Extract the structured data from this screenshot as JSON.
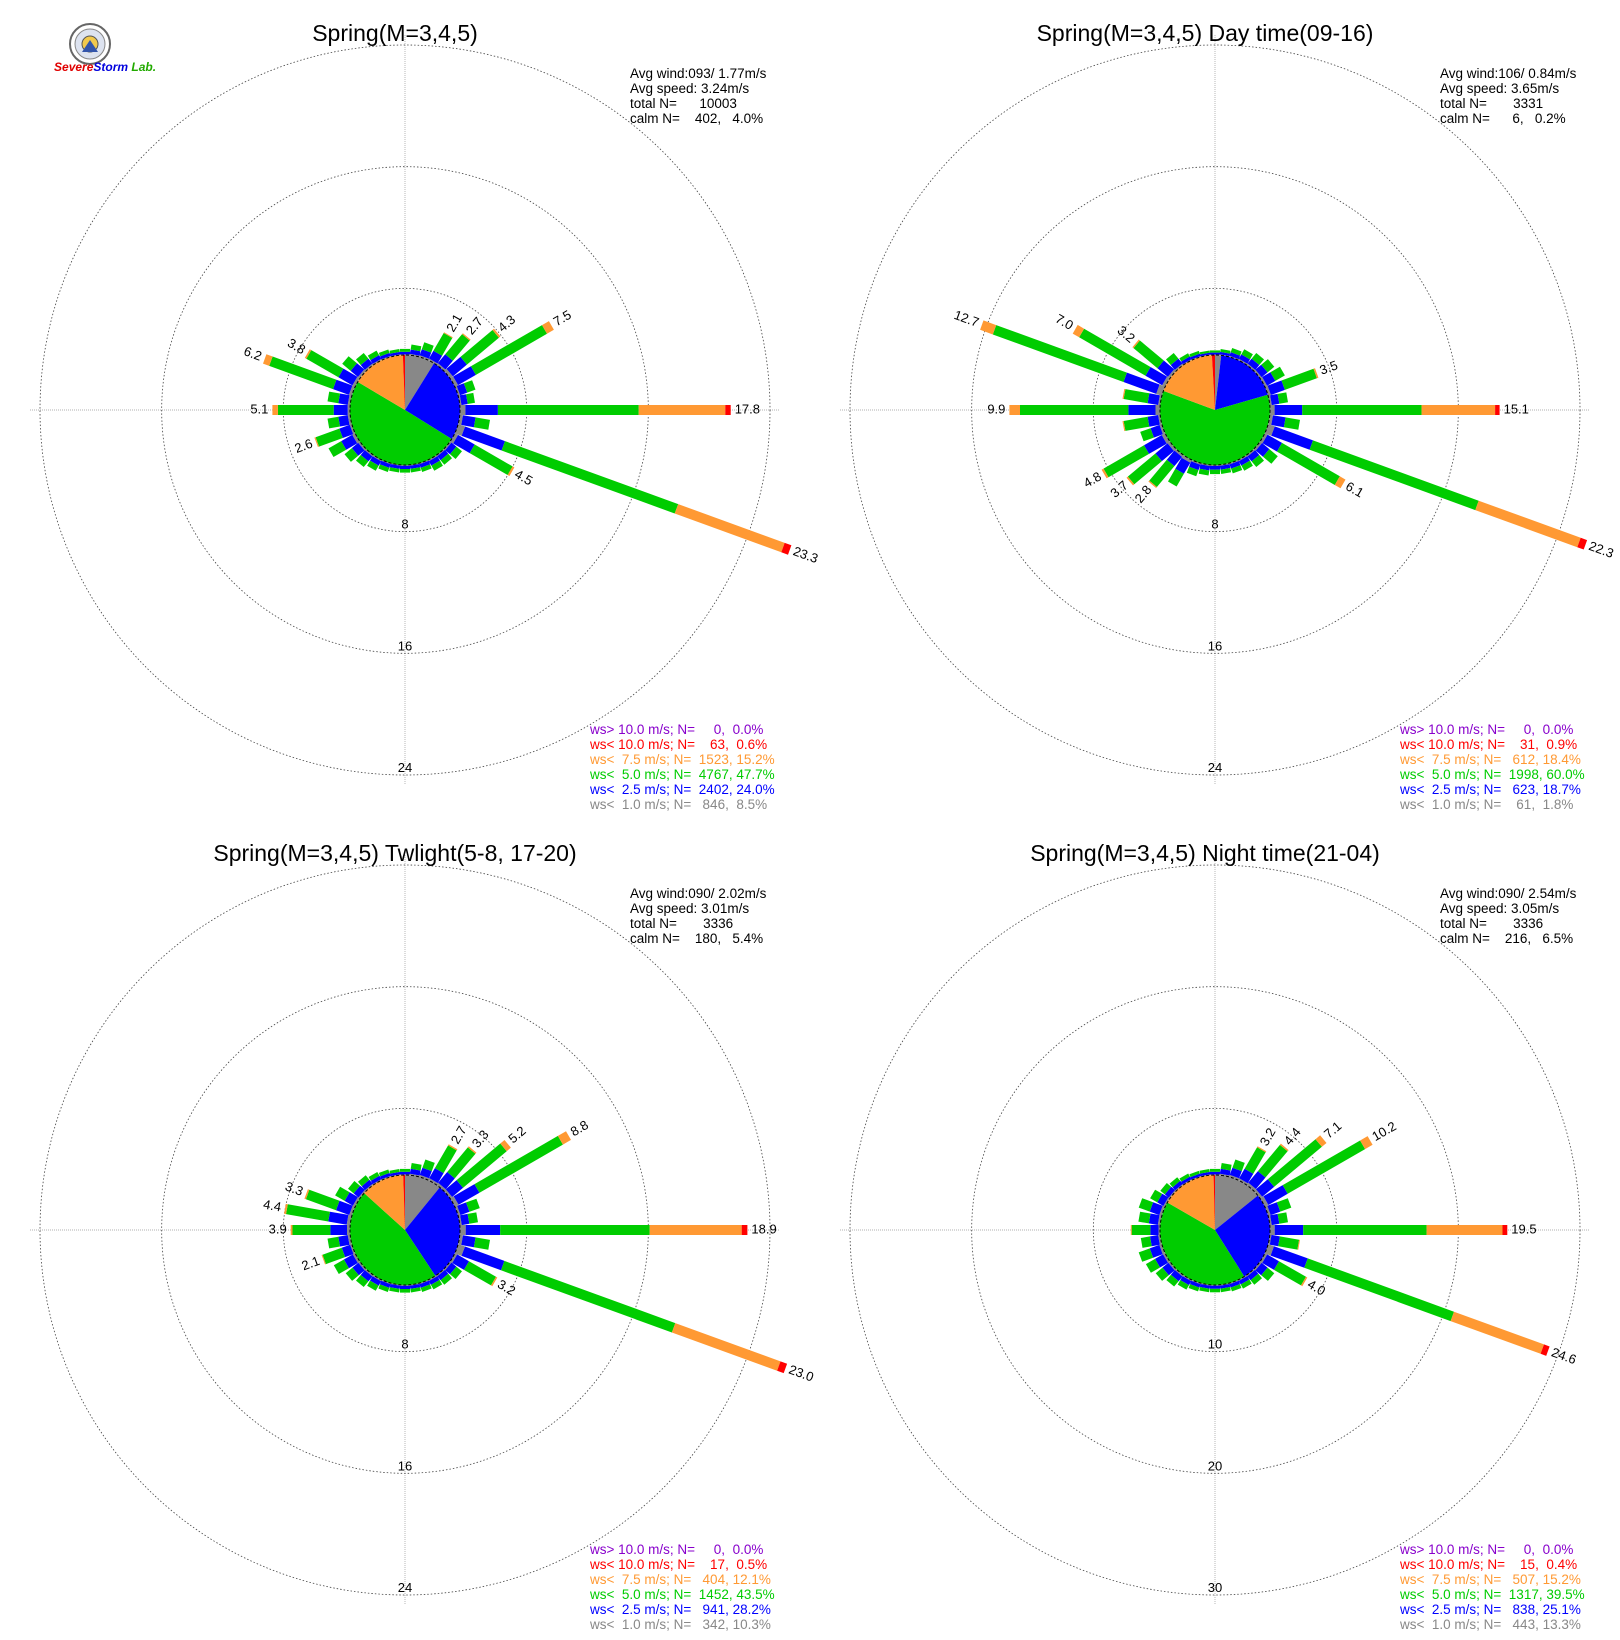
{
  "logo": {
    "name": "Severe Storm Lab.",
    "text_parts": [
      "S",
      "evere",
      "S",
      "torm",
      " Lab."
    ],
    "colors": [
      "#e00000",
      "#e00000",
      "#0000dd",
      "#0000dd",
      "#22aa00"
    ]
  },
  "legend_labels": [
    "ws> 10.0 m/s; N=",
    "ws< 10.0 m/s; N=",
    "ws<  7.5 m/s; N=",
    "ws<  5.0 m/s; N=",
    "ws<  2.5 m/s; N=",
    "ws<  1.0 m/s; N="
  ],
  "speed_colors": [
    "#8800cc",
    "#ff0000",
    "#ff9933",
    "#00cc00",
    "#0000ff",
    "#888888"
  ],
  "chart_data": [
    {
      "type": "wind-rose",
      "title": "Spring(M=3,4,5)",
      "stats": {
        "avg_wind": "Avg wind:093/ 1.77m/s",
        "avg_speed": "Avg speed: 3.24m/s",
        "total": "total N=      10003",
        "calm": "calm N=    402,   4.0%"
      },
      "rings": [
        "8",
        "16",
        "24"
      ],
      "rmax": 24,
      "legend": [
        {
          "n": "0",
          "pct": "0.0%"
        },
        {
          "n": "63",
          "pct": "0.6%"
        },
        {
          "n": "1523",
          "pct": "15.2%"
        },
        {
          "n": "4767",
          "pct": "47.7%"
        },
        {
          "n": "2402",
          "pct": "24.0%"
        },
        {
          "n": "846",
          "pct": "8.5%"
        }
      ],
      "pie": [
        8.5,
        24.0,
        47.7,
        15.2,
        0.6,
        0.0
      ],
      "directions": [
        0,
        10,
        20,
        30,
        40,
        50,
        60,
        70,
        80,
        90,
        100,
        110,
        120,
        130,
        140,
        150,
        160,
        170,
        180,
        190,
        200,
        210,
        220,
        230,
        240,
        250,
        260,
        270,
        280,
        290,
        300,
        310,
        320,
        330,
        340,
        350
      ],
      "totals": [
        0.4,
        0.7,
        1.0,
        2.1,
        2.7,
        4.3,
        7.5,
        1.2,
        1.0,
        17.8,
        2.0,
        23.3,
        4.5,
        1.0,
        0.8,
        0.8,
        0.6,
        0.5,
        0.5,
        0.5,
        0.6,
        0.8,
        1.0,
        1.3,
        2.0,
        2.6,
        1.5,
        5.1,
        1.5,
        6.2,
        3.8,
        1.5,
        1.0,
        0.7,
        0.5,
        0.4
      ],
      "labeled": [
        3,
        4,
        5,
        6,
        9,
        11,
        12,
        25,
        27,
        29,
        30
      ]
    },
    {
      "type": "wind-rose",
      "title": "Spring(M=3,4,5) Day time(09-16)",
      "stats": {
        "avg_wind": "Avg wind:106/ 0.84m/s",
        "avg_speed": "Avg speed: 3.65m/s",
        "total": "total N=       3331",
        "calm": "calm N=      6,   0.2%"
      },
      "rings": [
        "8",
        "16",
        "24"
      ],
      "rmax": 24,
      "legend": [
        {
          "n": "0",
          "pct": "0.0%"
        },
        {
          "n": "31",
          "pct": "0.9%"
        },
        {
          "n": "612",
          "pct": "18.4%"
        },
        {
          "n": "1998",
          "pct": "60.0%"
        },
        {
          "n": "623",
          "pct": "18.7%"
        },
        {
          "n": "61",
          "pct": "1.8%"
        }
      ],
      "pie": [
        1.8,
        18.7,
        60.0,
        18.4,
        0.9,
        0.0
      ],
      "directions": [
        0,
        10,
        20,
        30,
        40,
        50,
        60,
        70,
        80,
        90,
        100,
        110,
        120,
        130,
        140,
        150,
        160,
        170,
        180,
        190,
        200,
        210,
        220,
        230,
        240,
        250,
        260,
        270,
        280,
        290,
        300,
        310,
        320,
        330,
        340,
        350
      ],
      "totals": [
        0.3,
        0.4,
        0.6,
        0.8,
        1.0,
        1.2,
        1.5,
        3.5,
        1.2,
        15.1,
        2.0,
        22.3,
        6.1,
        1.5,
        1.0,
        0.8,
        0.7,
        0.6,
        0.6,
        0.7,
        0.9,
        2.0,
        2.8,
        3.7,
        4.8,
        1.5,
        2.5,
        9.9,
        2.5,
        12.7,
        7.0,
        3.2,
        1.0,
        0.5,
        0.4,
        0.3
      ],
      "labeled": [
        7,
        9,
        11,
        12,
        22,
        23,
        24,
        27,
        29,
        30,
        31
      ]
    },
    {
      "type": "wind-rose",
      "title": "Spring(M=3,4,5) Twlight(5-8, 17-20)",
      "stats": {
        "avg_wind": "Avg wind:090/ 2.02m/s",
        "avg_speed": "Avg speed: 3.01m/s",
        "total": "total N=       3336",
        "calm": "calm N=    180,   5.4%"
      },
      "rings": [
        "8",
        "16",
        "24"
      ],
      "rmax": 24,
      "legend": [
        {
          "n": "0",
          "pct": "0.0%"
        },
        {
          "n": "17",
          "pct": "0.5%"
        },
        {
          "n": "404",
          "pct": "12.1%"
        },
        {
          "n": "1452",
          "pct": "43.5%"
        },
        {
          "n": "941",
          "pct": "28.2%"
        },
        {
          "n": "342",
          "pct": "10.3%"
        }
      ],
      "pie": [
        10.3,
        28.2,
        43.5,
        12.1,
        0.5,
        0.0
      ],
      "directions": [
        0,
        10,
        20,
        30,
        40,
        50,
        60,
        70,
        80,
        90,
        100,
        110,
        120,
        130,
        140,
        150,
        160,
        170,
        180,
        190,
        200,
        210,
        220,
        230,
        240,
        250,
        260,
        270,
        280,
        290,
        300,
        310,
        320,
        330,
        340,
        350
      ],
      "totals": [
        0.4,
        0.8,
        1.2,
        2.7,
        3.3,
        5.2,
        8.8,
        1.5,
        1.2,
        18.9,
        2.0,
        23.0,
        3.2,
        1.0,
        0.8,
        0.7,
        0.6,
        0.5,
        0.5,
        0.5,
        0.6,
        0.8,
        1.0,
        1.2,
        1.6,
        2.1,
        1.5,
        3.9,
        4.4,
        3.3,
        1.5,
        1.0,
        0.8,
        0.6,
        0.5,
        0.4
      ],
      "labeled": [
        3,
        4,
        5,
        6,
        9,
        11,
        12,
        25,
        27,
        28,
        29
      ]
    },
    {
      "type": "wind-rose",
      "title": "Spring(M=3,4,5) Night time(21-04)",
      "stats": {
        "avg_wind": "Avg wind:090/ 2.54m/s",
        "avg_speed": "Avg speed: 3.05m/s",
        "total": "total N=       3336",
        "calm": "calm N=    216,   6.5%"
      },
      "rings": [
        "10",
        "20",
        "30"
      ],
      "rmax": 30,
      "legend": [
        {
          "n": "0",
          "pct": "0.0%"
        },
        {
          "n": "15",
          "pct": "0.4%"
        },
        {
          "n": "507",
          "pct": "15.2%"
        },
        {
          "n": "1317",
          "pct": "39.5%"
        },
        {
          "n": "838",
          "pct": "25.1%"
        },
        {
          "n": "443",
          "pct": "13.3%"
        }
      ],
      "pie": [
        13.3,
        25.1,
        39.5,
        15.2,
        0.4,
        0.0
      ],
      "directions": [
        0,
        10,
        20,
        30,
        40,
        50,
        60,
        70,
        80,
        90,
        100,
        110,
        120,
        130,
        140,
        150,
        160,
        170,
        180,
        190,
        200,
        210,
        220,
        230,
        240,
        250,
        260,
        270,
        280,
        290,
        300,
        310,
        320,
        330,
        340,
        350
      ],
      "totals": [
        0.5,
        1.0,
        1.5,
        3.2,
        4.4,
        7.1,
        10.2,
        2.0,
        1.5,
        19.5,
        2.5,
        24.6,
        4.0,
        1.5,
        1.0,
        0.8,
        0.7,
        0.6,
        0.6,
        0.6,
        0.7,
        0.9,
        1.2,
        1.5,
        1.8,
        2.0,
        1.6,
        2.4,
        1.8,
        2.0,
        1.4,
        1.0,
        0.8,
        0.6,
        0.5,
        0.5
      ],
      "labeled": [
        3,
        4,
        5,
        6,
        9,
        11,
        12
      ]
    }
  ]
}
